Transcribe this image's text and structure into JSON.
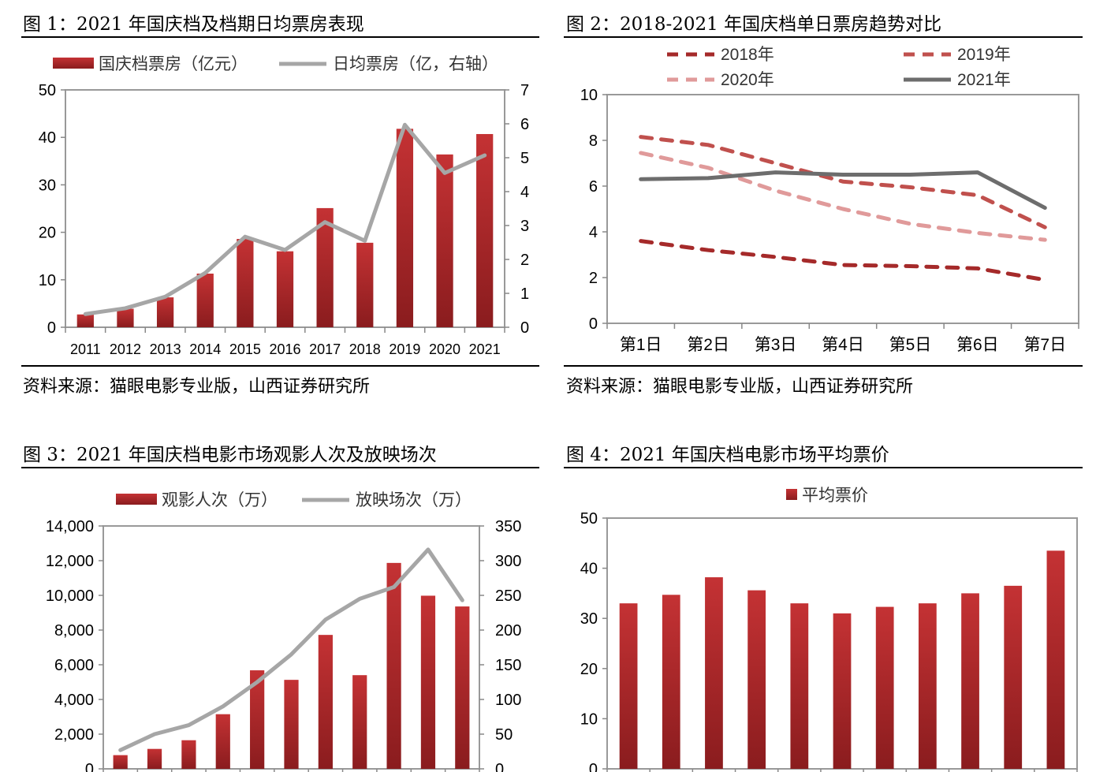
{
  "charts": [
    {
      "title": "图 1：2021 年国庆档及档期日均票房表现",
      "source": "资料来源：猫眼电影专业版，山西证券研究所"
    },
    {
      "title": "图 2：2018-2021 年国庆档单日票房趋势对比",
      "source": "资料来源：猫眼电影专业版，山西证券研究所"
    },
    {
      "title": "图 3：2021 年国庆档电影市场观影人次及放映场次"
    },
    {
      "title": "图 4：2021 年国庆档电影市场平均票价"
    }
  ],
  "colors": {
    "bar": "#b8292b",
    "bar_dark": "#8a1c1e",
    "line_gray": "#a6a6a6",
    "s2018": "#a52a2a",
    "s2019": "#c0504d",
    "s2020": "#e09a9a",
    "s2021": "#6d6d6d"
  },
  "chart_data": [
    {
      "type": "bar+line",
      "categories": [
        "2011",
        "2012",
        "2013",
        "2014",
        "2015",
        "2016",
        "2017",
        "2018",
        "2019",
        "2020",
        "2021"
      ],
      "series": [
        {
          "name": "国庆档票房（亿元）",
          "type": "bar",
          "axis": "left",
          "values": [
            2.7,
            3.9,
            6.3,
            11.3,
            18.6,
            16.0,
            25.1,
            17.8,
            41.8,
            36.4,
            40.7
          ]
        },
        {
          "name": "日均票房（亿，右轴）",
          "type": "line",
          "axis": "right",
          "values": [
            0.39,
            0.56,
            0.9,
            1.6,
            2.67,
            2.28,
            3.1,
            2.55,
            5.97,
            4.55,
            5.07
          ]
        }
      ],
      "ylim": [
        0,
        50
      ],
      "yticks": [
        "0",
        "10",
        "20",
        "30",
        "40",
        "50"
      ],
      "y2lim": [
        0,
        7
      ],
      "y2ticks": [
        "0",
        "1",
        "2",
        "3",
        "4",
        "5",
        "6",
        "7"
      ],
      "legend": "top"
    },
    {
      "type": "line",
      "categories": [
        "第1日",
        "第2日",
        "第3日",
        "第4日",
        "第5日",
        "第6日",
        "第7日"
      ],
      "series": [
        {
          "name": "2018年",
          "style": "dashed",
          "values": [
            3.6,
            3.2,
            2.9,
            2.55,
            2.5,
            2.4,
            1.9
          ]
        },
        {
          "name": "2019年",
          "style": "dashed",
          "values": [
            8.15,
            7.8,
            7.0,
            6.2,
            5.95,
            5.6,
            4.2
          ]
        },
        {
          "name": "2020年",
          "style": "dashed",
          "values": [
            7.45,
            6.8,
            5.8,
            5.0,
            4.35,
            3.95,
            3.65
          ]
        },
        {
          "name": "2021年",
          "style": "solid",
          "values": [
            6.3,
            6.35,
            6.6,
            6.5,
            6.5,
            6.6,
            5.05
          ]
        }
      ],
      "ylim": [
        0,
        10
      ],
      "yticks": [
        "0",
        "2",
        "4",
        "6",
        "8",
        "10"
      ],
      "legend": "top"
    },
    {
      "type": "bar+line",
      "categories": [
        "",
        "",
        "",
        "",
        "",
        "",
        "",
        "",
        "",
        "",
        ""
      ],
      "series": [
        {
          "name": "观影人次（万）",
          "type": "bar",
          "axis": "left",
          "values": [
            790,
            1150,
            1650,
            3150,
            5680,
            5130,
            7720,
            5400,
            11870,
            9980,
            9360
          ]
        },
        {
          "name": "放映场次（万）",
          "type": "line",
          "axis": "right",
          "values": [
            27,
            50,
            63,
            90,
            125,
            165,
            215,
            245,
            262,
            316,
            243
          ]
        }
      ],
      "ylim": [
        0,
        14000
      ],
      "yticks": [
        "0",
        "2,000",
        "4,000",
        "6,000",
        "8,000",
        "10,000",
        "12,000",
        "14,000"
      ],
      "y2lim": [
        0,
        350
      ],
      "y2ticks": [
        "0",
        "50",
        "100",
        "150",
        "200",
        "250",
        "300",
        "350"
      ],
      "legend": "top"
    },
    {
      "type": "bar",
      "categories": [
        "",
        "",
        "",
        "",
        "",
        "",
        "",
        "",
        "",
        "",
        ""
      ],
      "series": [
        {
          "name": "平均票价",
          "type": "bar",
          "values": [
            33,
            34.7,
            38.2,
            35.6,
            33,
            31,
            32.3,
            33,
            35,
            36.5,
            43.5
          ]
        }
      ],
      "ylim": [
        0,
        50
      ],
      "yticks": [
        "0",
        "10",
        "20",
        "30",
        "40",
        "50"
      ],
      "legend": "top"
    }
  ]
}
